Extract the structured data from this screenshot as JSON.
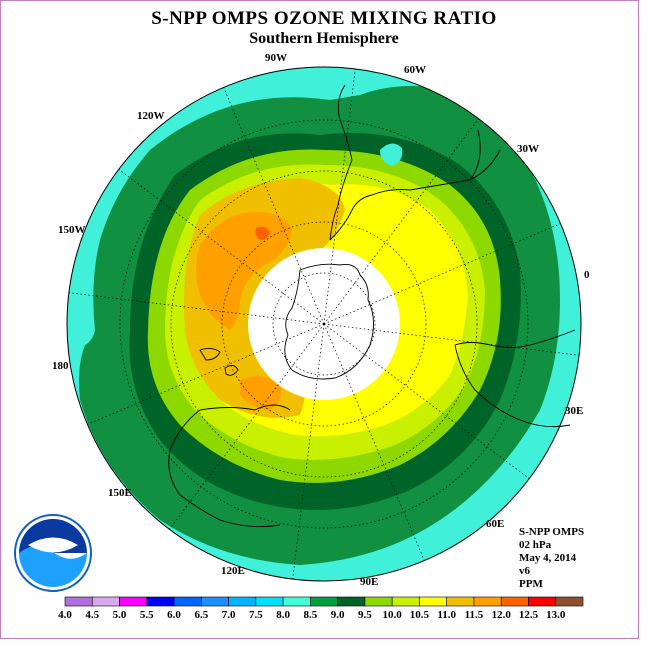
{
  "title": "S-NPP OMPS OZONE MIXING RATIO",
  "subtitle": "Southern Hemisphere",
  "longitude_labels": [
    "90W",
    "60W",
    "120W",
    "30W",
    "150W",
    "0",
    "180",
    "30E",
    "150E",
    "60E",
    "120E",
    "90E"
  ],
  "info": [
    "S-NPP OMPS",
    "02 hPa",
    "May 4, 2014",
    "v6",
    "PPM"
  ],
  "logo": {
    "text": "NOAA",
    "ring_text": "NATIONAL OCEANIC AND ATMOSPHERIC ADMINISTRATION · U.S. DEPARTMENT OF COMMERCE"
  },
  "colorbar": {
    "ticks": [
      "4.0",
      "4.5",
      "5.0",
      "5.5",
      "6.0",
      "6.5",
      "7.0",
      "7.5",
      "8.0",
      "8.5",
      "9.0",
      "9.5",
      "10.0",
      "10.5",
      "11.0",
      "11.5",
      "12.0",
      "12.5",
      "13.0"
    ],
    "colors": [
      "#b070e0",
      "#d8a8f0",
      "#ff00ff",
      "#0000ff",
      "#0064ff",
      "#1e90ff",
      "#00b4ff",
      "#00e0ff",
      "#40ffd8",
      "#00a040",
      "#006428",
      "#8cd800",
      "#c8f000",
      "#ffff00",
      "#f0c000",
      "#ffa000",
      "#ff6000",
      "#ff0000",
      "#905030"
    ]
  },
  "map_colors": {
    "outer": "#40f0d8",
    "band_8_5": "#109040",
    "band_9_0": "#006428",
    "band_9_5": "#8cd800",
    "band_10": "#c8f000",
    "band_10_5": "#ffff00",
    "band_11": "#f0c000",
    "band_11_5": "#ffa000",
    "band_12": "#ff6000",
    "polar_gap": "#ffffff"
  }
}
